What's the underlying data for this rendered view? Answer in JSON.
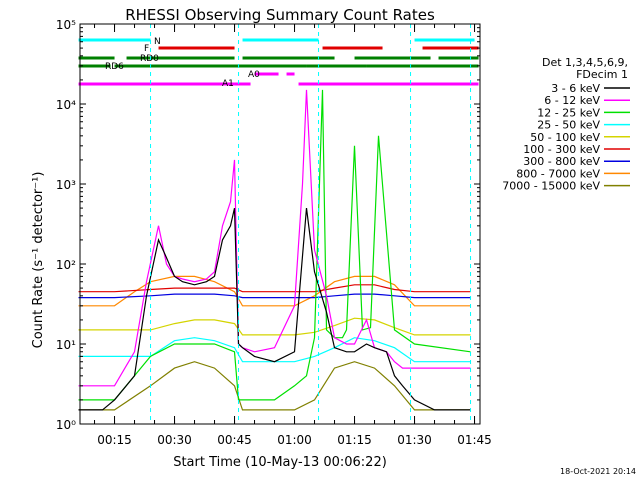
{
  "chart_data": {
    "type": "line",
    "title": "RHESSI Observing Summary Count Rates",
    "xlabel": "Start Time (10-May-13 00:06:22)",
    "ylabel": "Count Rate (s⁻¹ detector⁻¹)",
    "y_scale": "log",
    "ylim": [
      1,
      100000
    ],
    "y_ticks": [
      "10⁰",
      "10¹",
      "10²",
      "10³",
      "10⁴",
      "10⁵"
    ],
    "xlim": [
      "00:06:22",
      "01:46:22"
    ],
    "x_ticks": [
      "00:15",
      "00:30",
      "00:45",
      "01:00",
      "01:15",
      "01:30",
      "01:45"
    ],
    "legend": {
      "placement": "right",
      "header": [
        "Det 1,3,4,5,6,9,",
        "FDecim 1"
      ],
      "entries": [
        {
          "label": "3 - 6 keV",
          "color": "#000000"
        },
        {
          "label": "6 - 12 keV",
          "color": "#ff00ff"
        },
        {
          "label": "12 - 25 keV",
          "color": "#00e000"
        },
        {
          "label": "25 - 50 keV",
          "color": "#00ffff"
        },
        {
          "label": "50 - 100 keV",
          "color": "#d4d400"
        },
        {
          "label": "100 - 300 keV",
          "color": "#e00000"
        },
        {
          "label": "300 - 800 keV",
          "color": "#0000e0"
        },
        {
          "label": "800 - 7000 keV",
          "color": "#ff8800"
        },
        {
          "label": "7000 - 15000 keV",
          "color": "#808000"
        }
      ]
    },
    "flag_bars": [
      {
        "label": "N",
        "color": "#00ffff",
        "segments": [
          [
            "00:06",
            "00:24"
          ],
          [
            "00:47",
            "01:06"
          ],
          [
            "01:30",
            "01:45"
          ]
        ]
      },
      {
        "label": "F",
        "color": "#e00000",
        "segments": [
          [
            "00:26",
            "00:45"
          ],
          [
            "01:07",
            "01:22"
          ],
          [
            "01:32",
            "01:46"
          ]
        ]
      },
      {
        "label": "RD0",
        "color": "#008000",
        "segments": [
          [
            "00:06",
            "00:15"
          ],
          [
            "00:18",
            "00:45"
          ],
          [
            "00:47",
            "01:10"
          ],
          [
            "01:15",
            "01:34"
          ],
          [
            "01:36",
            "01:46"
          ]
        ]
      },
      {
        "label": "RD6",
        "color": "#008000",
        "segments": [
          [
            "00:06",
            "00:14"
          ],
          [
            "00:15",
            "01:03"
          ],
          [
            "01:03",
            "01:18"
          ],
          [
            "01:18",
            "01:46"
          ]
        ]
      },
      {
        "label": "A0",
        "color": "#ff00ff",
        "segments": [
          [
            "00:50",
            "00:56"
          ],
          [
            "00:58",
            "01:00"
          ]
        ]
      },
      {
        "label": "A1",
        "color": "#ff00ff",
        "segments": [
          [
            "00:06",
            "00:45"
          ],
          [
            "00:45",
            "00:49"
          ],
          [
            "01:01",
            "01:46"
          ]
        ]
      }
    ],
    "vertical_markers": [
      "00:24",
      "00:46",
      "01:06",
      "01:29",
      "01:44"
    ],
    "series": [
      {
        "name": "3 - 6 keV",
        "color": "#000000",
        "x": [
          "00:06",
          "00:12",
          "00:15",
          "00:20",
          "00:23",
          "00:26",
          "00:28",
          "00:30",
          "00:32",
          "00:35",
          "00:38",
          "00:40",
          "00:42",
          "00:44",
          "00:45",
          "00:46",
          "00:47",
          "00:50",
          "00:55",
          "01:00",
          "01:03",
          "01:05",
          "01:08",
          "01:10",
          "01:13",
          "01:15",
          "01:18",
          "01:20",
          "01:23",
          "01:25",
          "01:27",
          "01:30",
          "01:35",
          "01:40",
          "01:44"
        ],
        "values": [
          1.5,
          1.5,
          2,
          4,
          40,
          200,
          120,
          70,
          60,
          55,
          60,
          70,
          200,
          300,
          500,
          10,
          9,
          7,
          6,
          8,
          500,
          80,
          25,
          9,
          8,
          8,
          10,
          9,
          8,
          4,
          3,
          2,
          1.5,
          1.5,
          1.5
        ]
      },
      {
        "name": "6 - 12 keV",
        "color": "#ff00ff",
        "x": [
          "00:06",
          "00:12",
          "00:15",
          "00:20",
          "00:23",
          "00:26",
          "00:28",
          "00:30",
          "00:32",
          "00:35",
          "00:38",
          "00:40",
          "00:42",
          "00:44",
          "00:45",
          "00:46",
          "00:47",
          "00:50",
          "00:55",
          "01:00",
          "01:02",
          "01:03",
          "01:05",
          "01:08",
          "01:10",
          "01:13",
          "01:15",
          "01:18",
          "01:20",
          "01:23",
          "01:25",
          "01:27",
          "01:30",
          "01:35",
          "01:40",
          "01:44"
        ],
        "values": [
          3,
          3,
          3,
          8,
          60,
          300,
          100,
          70,
          65,
          60,
          65,
          80,
          300,
          600,
          2000,
          10,
          9,
          8,
          9,
          30,
          1000,
          15000,
          150,
          40,
          12,
          10,
          10,
          20,
          9,
          8,
          6,
          5,
          5,
          5,
          5,
          5
        ]
      },
      {
        "name": "12 - 25 keV",
        "color": "#00e000",
        "x": [
          "00:06",
          "00:15",
          "00:24",
          "00:30",
          "00:40",
          "00:45",
          "00:46",
          "00:50",
          "00:55",
          "01:00",
          "01:03",
          "01:05",
          "01:07",
          "01:08",
          "01:10",
          "01:12",
          "01:13",
          "01:15",
          "01:17",
          "01:19",
          "01:21",
          "01:25",
          "01:30",
          "01:44"
        ],
        "values": [
          2,
          2,
          7,
          10,
          10,
          8,
          2,
          2,
          2,
          3,
          4,
          12,
          15000,
          15,
          12,
          12,
          15,
          3000,
          15,
          16,
          4000,
          15,
          10,
          8
        ]
      },
      {
        "name": "25 - 50 keV",
        "color": "#00ffff",
        "x": [
          "00:06",
          "00:15",
          "00:20",
          "00:24",
          "00:30",
          "00:35",
          "00:40",
          "00:45",
          "00:47",
          "00:50",
          "00:55",
          "01:00",
          "01:05",
          "01:10",
          "01:15",
          "01:20",
          "01:25",
          "01:30",
          "01:35",
          "01:40",
          "01:44"
        ],
        "values": [
          7,
          7,
          7,
          7,
          11,
          12,
          11,
          9,
          6,
          6,
          6,
          6,
          7,
          9,
          12,
          11,
          9,
          6,
          6,
          6,
          6
        ]
      },
      {
        "name": "50 - 100 keV",
        "color": "#d4d400",
        "x": [
          "00:06",
          "00:15",
          "00:24",
          "00:30",
          "00:35",
          "00:40",
          "00:45",
          "00:47",
          "00:50",
          "00:55",
          "01:00",
          "01:05",
          "01:10",
          "01:15",
          "01:20",
          "01:25",
          "01:30",
          "01:35",
          "01:40",
          "01:44"
        ],
        "values": [
          15,
          15,
          15,
          18,
          20,
          20,
          18,
          13,
          13,
          13,
          13,
          14,
          17,
          21,
          20,
          16,
          13,
          13,
          13,
          13
        ]
      },
      {
        "name": "100 - 300 keV",
        "color": "#e00000",
        "x": [
          "00:06",
          "00:15",
          "00:24",
          "00:30",
          "00:35",
          "00:40",
          "00:45",
          "00:47",
          "00:50",
          "00:55",
          "01:00",
          "01:05",
          "01:10",
          "01:15",
          "01:20",
          "01:25",
          "01:30",
          "01:35",
          "01:40",
          "01:44"
        ],
        "values": [
          45,
          45,
          48,
          50,
          50,
          50,
          50,
          45,
          45,
          45,
          45,
          45,
          50,
          55,
          55,
          48,
          45,
          45,
          45,
          45
        ]
      },
      {
        "name": "300 - 800 keV",
        "color": "#0000e0",
        "x": [
          "00:06",
          "00:15",
          "00:24",
          "00:30",
          "00:35",
          "00:40",
          "00:45",
          "00:47",
          "00:50",
          "00:55",
          "01:00",
          "01:05",
          "01:10",
          "01:15",
          "01:20",
          "01:25",
          "01:30",
          "01:35",
          "01:40",
          "01:44"
        ],
        "values": [
          38,
          38,
          40,
          42,
          42,
          42,
          40,
          38,
          38,
          38,
          38,
          38,
          40,
          42,
          42,
          40,
          38,
          38,
          38,
          38
        ]
      },
      {
        "name": "800 - 7000 keV",
        "color": "#ff8800",
        "x": [
          "00:06",
          "00:15",
          "00:20",
          "00:24",
          "00:30",
          "00:35",
          "00:40",
          "00:45",
          "00:47",
          "00:50",
          "00:55",
          "01:00",
          "01:05",
          "01:10",
          "01:15",
          "01:20",
          "01:25",
          "01:30",
          "01:35",
          "01:40",
          "01:44"
        ],
        "values": [
          30,
          30,
          45,
          60,
          70,
          70,
          60,
          45,
          30,
          30,
          30,
          30,
          40,
          60,
          70,
          70,
          55,
          30,
          30,
          30,
          30
        ]
      },
      {
        "name": "7000 - 15000 keV",
        "color": "#808000",
        "x": [
          "00:06",
          "00:15",
          "00:24",
          "00:30",
          "00:35",
          "00:40",
          "00:45",
          "00:47",
          "00:50",
          "00:55",
          "01:00",
          "01:05",
          "01:10",
          "01:15",
          "01:20",
          "01:25",
          "01:30",
          "01:35",
          "01:40",
          "01:44"
        ],
        "values": [
          1.5,
          1.5,
          3,
          5,
          6,
          5,
          3,
          1.5,
          1.5,
          1.5,
          1.5,
          2,
          5,
          6,
          5,
          3,
          1.5,
          1.5,
          1.5,
          1.5
        ]
      }
    ]
  },
  "footer_date": "18-Oct-2021 20:14"
}
